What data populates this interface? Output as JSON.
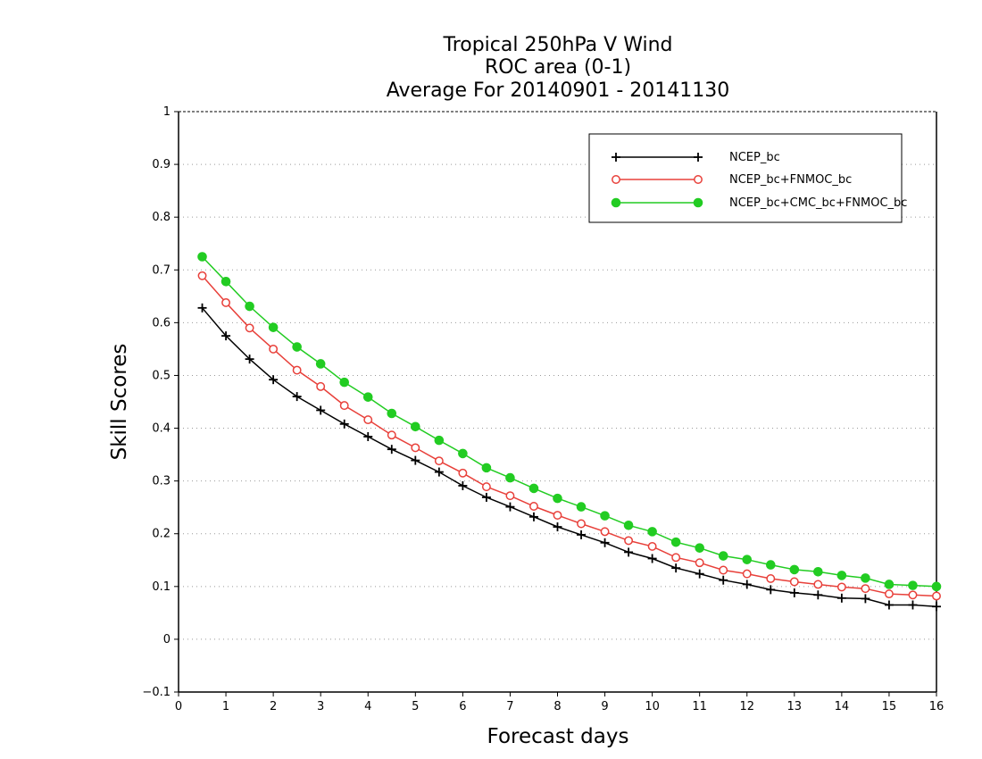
{
  "chart_data": {
    "type": "line",
    "title_lines": [
      "Tropical 250hPa V Wind",
      "ROC area (0-1)",
      "Average For 20140901 - 20141130"
    ],
    "xlabel": "Forecast days",
    "ylabel": "Skill Scores",
    "xlim": [
      0,
      16
    ],
    "ylim": [
      -0.1,
      1
    ],
    "xticks": [
      0,
      1,
      2,
      3,
      4,
      5,
      6,
      7,
      8,
      9,
      10,
      11,
      12,
      13,
      14,
      15,
      16
    ],
    "xtick_labels": [
      "0",
      "1",
      "2",
      "3",
      "4",
      "5",
      "6",
      "7",
      "8",
      "9",
      "10",
      "11",
      "12",
      "13",
      "14",
      "15",
      "16"
    ],
    "yticks": [
      -0.1,
      0,
      0.1,
      0.2,
      0.3,
      0.4,
      0.5,
      0.6,
      0.7,
      0.8,
      0.9,
      1
    ],
    "ytick_labels": [
      "−0.1",
      "0",
      "0.1",
      "0.2",
      "0.3",
      "0.4",
      "0.5",
      "0.6",
      "0.7",
      "0.8",
      "0.9",
      "1"
    ],
    "grid": true,
    "legend_position": "top-right",
    "x": [
      0.5,
      1,
      1.5,
      2,
      2.5,
      3,
      3.5,
      4,
      4.5,
      5,
      5.5,
      6,
      6.5,
      7,
      7.5,
      8,
      8.5,
      9,
      9.5,
      10,
      10.5,
      11,
      11.5,
      12,
      12.5,
      13,
      13.5,
      14,
      14.5,
      15,
      15.5,
      16
    ],
    "series": [
      {
        "name": "NCEP_bc",
        "color": "#000000",
        "marker": "plus",
        "values": [
          0.628,
          0.575,
          0.531,
          0.492,
          0.46,
          0.434,
          0.408,
          0.384,
          0.36,
          0.339,
          0.317,
          0.291,
          0.269,
          0.251,
          0.232,
          0.213,
          0.198,
          0.183,
          0.165,
          0.153,
          0.135,
          0.124,
          0.112,
          0.104,
          0.094,
          0.088,
          0.084,
          0.078,
          0.077,
          0.065,
          0.065,
          0.062
        ]
      },
      {
        "name": "NCEP_bc+FNMOC_bc",
        "color": "#e8403a",
        "marker": "open-circle",
        "values": [
          0.689,
          0.638,
          0.59,
          0.55,
          0.51,
          0.479,
          0.443,
          0.416,
          0.387,
          0.363,
          0.338,
          0.315,
          0.289,
          0.272,
          0.252,
          0.235,
          0.219,
          0.204,
          0.187,
          0.176,
          0.155,
          0.145,
          0.131,
          0.124,
          0.115,
          0.109,
          0.104,
          0.099,
          0.096,
          0.086,
          0.084,
          0.082
        ]
      },
      {
        "name": "NCEP_bc+CMC_bc+FNMOC_bc",
        "color": "#22cc22",
        "marker": "filled-circle",
        "values": [
          0.725,
          0.678,
          0.631,
          0.591,
          0.554,
          0.522,
          0.487,
          0.459,
          0.428,
          0.403,
          0.377,
          0.352,
          0.325,
          0.306,
          0.286,
          0.267,
          0.251,
          0.234,
          0.216,
          0.204,
          0.184,
          0.173,
          0.158,
          0.151,
          0.141,
          0.132,
          0.128,
          0.121,
          0.116,
          0.104,
          0.102,
          0.1
        ]
      }
    ]
  }
}
